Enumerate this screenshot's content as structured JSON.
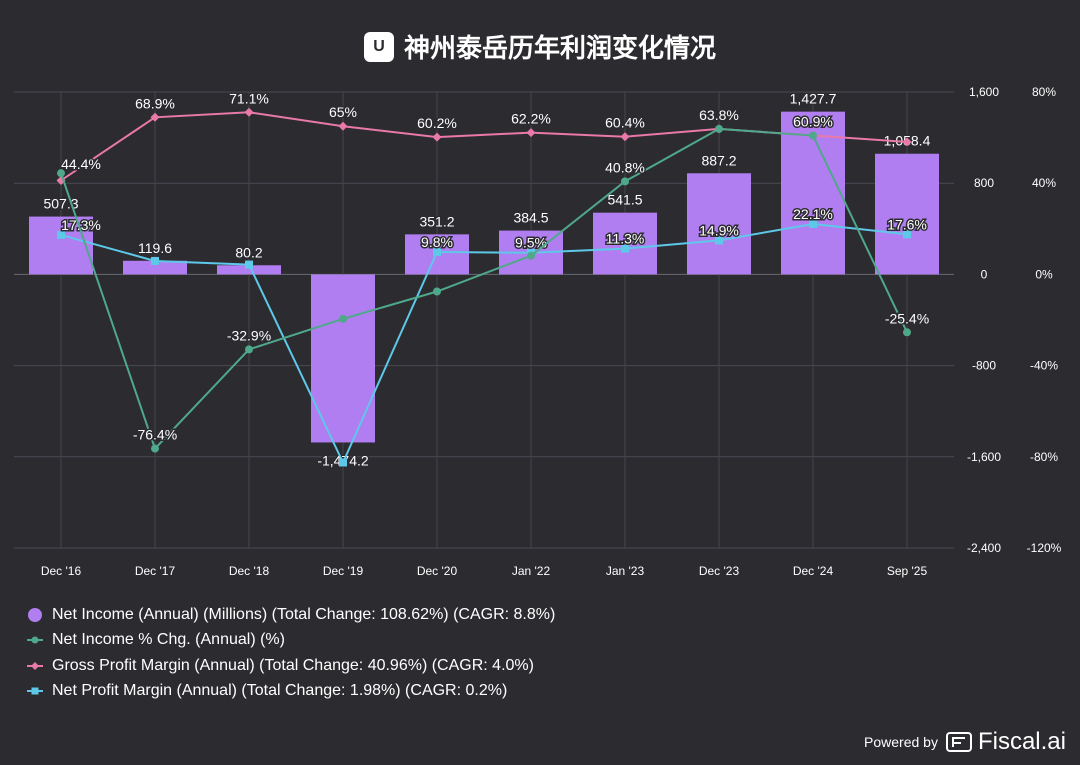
{
  "header": {
    "badge": "U",
    "title": "神州泰岳历年利润变化情况"
  },
  "colors": {
    "background": "#2b2b30",
    "net_income": "#b07ef0",
    "net_income_chg": "#4fa88a",
    "gross_margin": "#e879a8",
    "net_margin": "#5ec8e8"
  },
  "chart_data": {
    "type": "bar",
    "categories": [
      "Dec '16",
      "Dec '17",
      "Dec '18",
      "Dec '19",
      "Dec '20",
      "Jan '22",
      "Jan '23",
      "Dec '23",
      "Dec '24",
      "Sep '25"
    ],
    "left_axis": {
      "range": [
        -2400,
        1600
      ],
      "ticks": [
        "1,600",
        "800",
        "0",
        "-800",
        "-1,600",
        "-2,400"
      ],
      "tick_values": [
        1600,
        800,
        0,
        -800,
        -1600,
        -2400
      ]
    },
    "right_axis": {
      "range": [
        -120,
        80
      ],
      "ticks": [
        "80%",
        "40%",
        "0%",
        "-40%",
        "-80%",
        "-120%"
      ],
      "tick_values": [
        80,
        40,
        0,
        -40,
        -80,
        -120
      ]
    },
    "series": [
      {
        "name": "Net Income (Annual) (Millions) (Total Change: 108.62%) (CAGR: 8.8%)",
        "kind": "bar",
        "axis": "left",
        "values": [
          507.3,
          119.6,
          80.2,
          -1474.2,
          351.2,
          384.5,
          541.5,
          887.2,
          1427.7,
          1058.4
        ],
        "labels": [
          "507.3",
          "119.6",
          "80.2",
          "-1,474.2",
          "351.2",
          "384.5",
          "541.5",
          "887.2",
          "1,427.7",
          "1,058.4"
        ]
      },
      {
        "name": "Net Income % Chg. (Annual) (%)",
        "kind": "line-circle",
        "axis": "right",
        "values": [
          44.4,
          -76.4,
          -32.9,
          -19.5,
          -7.5,
          8.2,
          40.8,
          63.8,
          60.9,
          -25.4
        ],
        "labels": [
          "44.4%",
          "-76.4%",
          "-32.9%",
          null,
          null,
          null,
          "40.8%",
          null,
          null,
          "-25.4%"
        ]
      },
      {
        "name": "Gross Profit Margin (Annual) (Total Change: 40.96%) (CAGR: 4.0%)",
        "kind": "line-diamond",
        "axis": "right",
        "values": [
          41.2,
          68.9,
          71.1,
          65,
          60.2,
          62.2,
          60.4,
          63.8,
          60.9,
          58.1
        ],
        "labels": [
          null,
          "68.9%",
          "71.1%",
          "65%",
          "60.2%",
          "62.2%",
          "60.4%",
          "63.8%",
          "60.9%",
          null
        ]
      },
      {
        "name": "Net Profit Margin (Annual) (Total Change: 1.98%) (CAGR: 0.2%)",
        "kind": "line-square",
        "axis": "right",
        "values": [
          17.3,
          5.9,
          4.3,
          -82.5,
          9.8,
          9.5,
          11.3,
          14.9,
          22.1,
          17.6
        ],
        "labels": [
          "17.3%",
          null,
          null,
          null,
          "9.8%",
          "9.5%",
          "11.3%",
          "14.9%",
          "22.1%",
          "17.6%"
        ]
      }
    ]
  },
  "footer": {
    "powered_by": "Powered by",
    "brand": "Fiscal.ai"
  }
}
